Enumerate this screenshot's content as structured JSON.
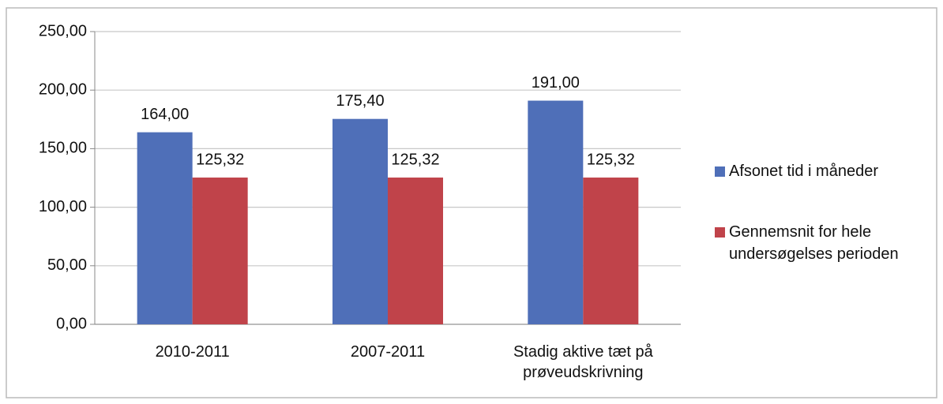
{
  "chart_data": {
    "type": "bar",
    "categories": [
      "2010-2011",
      "2007-2011",
      "Stadig aktive tæt på prøveudskrivning"
    ],
    "series": [
      {
        "name": "Afsonet tid i måneder",
        "color": "#4f6fb8",
        "values": [
          164,
          175.4,
          191
        ],
        "value_labels": [
          "164,00",
          "175,40",
          "191,00"
        ]
      },
      {
        "name": "Gennemsnit for hele undersøgelses perioden",
        "color": "#c0434a",
        "values": [
          125.32,
          125.32,
          125.32
        ],
        "value_labels": [
          "125,32",
          "125,32",
          "125,32"
        ]
      }
    ],
    "ylim": [
      0,
      250
    ],
    "yticks": [
      {
        "value": 0,
        "label": "0,00"
      },
      {
        "value": 50,
        "label": "50,00"
      },
      {
        "value": 100,
        "label": "100,00"
      },
      {
        "value": 150,
        "label": "150,00"
      },
      {
        "value": 200,
        "label": "200,00"
      },
      {
        "value": 250,
        "label": "250,00"
      }
    ],
    "grid": true,
    "legend": "right"
  }
}
